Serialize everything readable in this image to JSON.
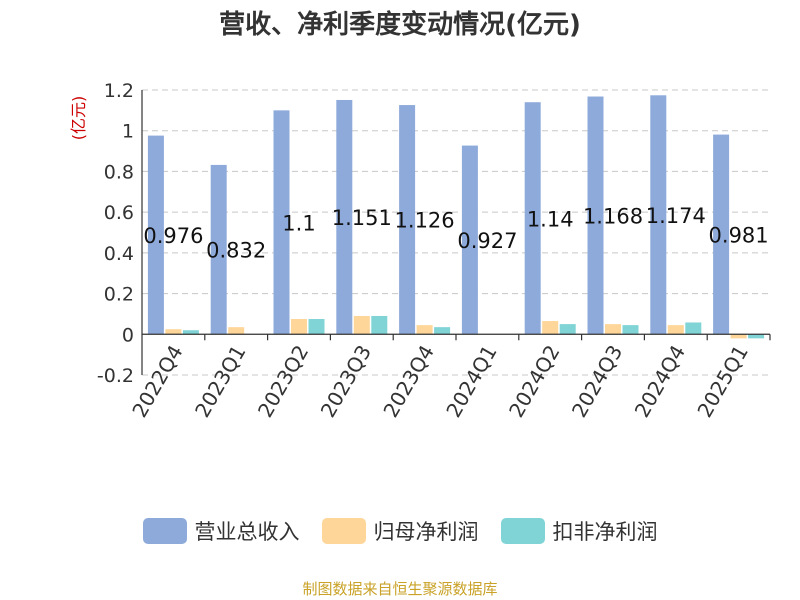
{
  "chart_data": {
    "type": "bar",
    "title": "营收、净利季度变动情况(亿元)",
    "ylabel": "(亿元)",
    "xlabel": "",
    "categories": [
      "2022Q4",
      "2023Q1",
      "2023Q2",
      "2023Q3",
      "2023Q4",
      "2024Q1",
      "2024Q2",
      "2024Q3",
      "2024Q4",
      "2025Q1"
    ],
    "series": [
      {
        "name": "营业总收入",
        "color": "#8eaadb",
        "values": [
          0.976,
          0.832,
          1.1,
          1.151,
          1.126,
          0.927,
          1.14,
          1.168,
          1.174,
          0.981
        ],
        "labels": [
          "0.976",
          "0.832",
          "1.1",
          "1.151",
          "1.126",
          "0.927",
          "1.14",
          "1.168",
          "1.174",
          "0.981"
        ]
      },
      {
        "name": "归母净利润",
        "color": "#ffd699",
        "values": [
          0.025,
          0.035,
          0.075,
          0.09,
          0.045,
          0.0,
          0.065,
          0.05,
          0.045,
          -0.02
        ]
      },
      {
        "name": "扣非净利润",
        "color": "#80d4d6",
        "values": [
          0.02,
          0.0,
          0.075,
          0.09,
          0.035,
          0.0,
          0.05,
          0.045,
          0.058,
          -0.02
        ]
      }
    ],
    "ylim": [
      -0.2,
      1.2
    ],
    "yticks": [
      -0.2,
      0,
      0.2,
      0.4,
      0.6,
      0.8,
      1,
      1.2
    ],
    "ytick_labels": [
      "-0.2",
      "0",
      "0.2",
      "0.4",
      "0.6",
      "0.8",
      "1",
      "1.2"
    ],
    "grid": true,
    "legend": "bottom"
  },
  "source_text": "制图数据来自恒生聚源数据库"
}
